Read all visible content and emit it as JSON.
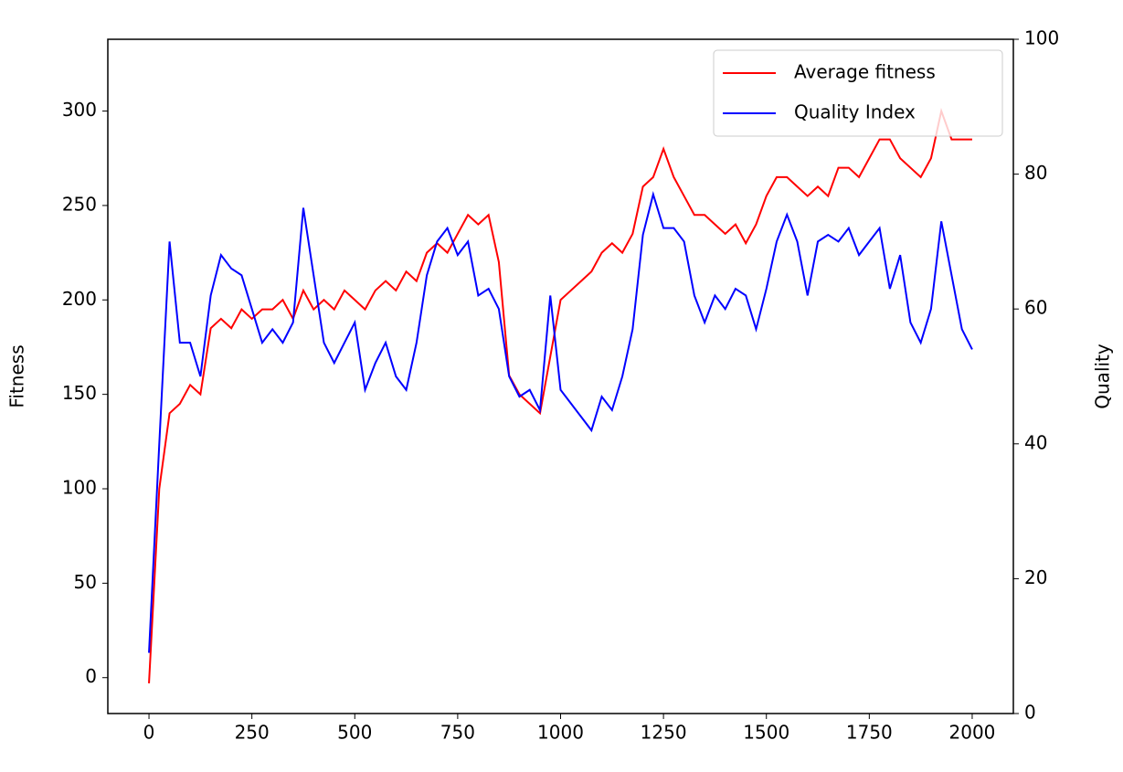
{
  "chart_data": {
    "type": "line",
    "ylabel": "Fitness",
    "y2label": "Quality",
    "x": [
      0,
      25,
      50,
      75,
      100,
      125,
      150,
      175,
      200,
      225,
      250,
      275,
      300,
      325,
      350,
      375,
      400,
      425,
      450,
      475,
      500,
      525,
      550,
      575,
      600,
      625,
      650,
      675,
      700,
      725,
      750,
      775,
      800,
      825,
      850,
      875,
      900,
      925,
      950,
      975,
      1000,
      1025,
      1050,
      1075,
      1100,
      1125,
      1150,
      1175,
      1200,
      1225,
      1250,
      1275,
      1300,
      1325,
      1350,
      1375,
      1400,
      1425,
      1450,
      1475,
      1500,
      1525,
      1550,
      1575,
      1600,
      1625,
      1650,
      1675,
      1700,
      1725,
      1750,
      1775,
      1800,
      1825,
      1850,
      1875,
      1900,
      1925,
      1950,
      1975,
      2000
    ],
    "series": [
      {
        "name": "Average fitness",
        "color": "#ff0000",
        "axis": "y",
        "values": [
          -3,
          100,
          140,
          145,
          155,
          150,
          185,
          190,
          185,
          195,
          190,
          195,
          195,
          200,
          190,
          205,
          195,
          200,
          195,
          205,
          200,
          195,
          205,
          210,
          205,
          215,
          210,
          225,
          230,
          225,
          235,
          245,
          240,
          245,
          220,
          160,
          150,
          145,
          140,
          170,
          200,
          205,
          210,
          215,
          225,
          230,
          225,
          235,
          260,
          265,
          280,
          265,
          255,
          245,
          245,
          240,
          235,
          240,
          230,
          240,
          255,
          265,
          265,
          260,
          255,
          260,
          255,
          270,
          270,
          265,
          275,
          285,
          285,
          275,
          270,
          265,
          275,
          300,
          285,
          285,
          285
        ]
      },
      {
        "name": "Quality Index",
        "color": "#0000ff",
        "axis": "y2",
        "values": [
          9,
          40,
          70,
          55,
          55,
          50,
          62,
          68,
          66,
          65,
          60,
          55,
          57,
          55,
          58,
          75,
          65,
          55,
          52,
          55,
          58,
          48,
          52,
          55,
          50,
          48,
          55,
          65,
          70,
          72,
          68,
          70,
          62,
          63,
          60,
          50,
          47,
          48,
          45,
          62,
          48,
          46,
          44,
          42,
          47,
          45,
          50,
          57,
          71,
          77,
          72,
          72,
          70,
          62,
          58,
          62,
          60,
          63,
          62,
          57,
          63,
          70,
          74,
          70,
          62,
          70,
          71,
          70,
          72,
          68,
          70,
          72,
          63,
          68,
          58,
          55,
          60,
          73,
          65,
          57,
          54
        ]
      }
    ],
    "xlim": [
      -100,
      2100
    ],
    "xticks": [
      0,
      250,
      500,
      750,
      1000,
      1250,
      1500,
      1750,
      2000
    ],
    "ylim": [
      -19,
      338
    ],
    "yticks": [
      0,
      50,
      100,
      150,
      200,
      250,
      300
    ],
    "y2lim": [
      0,
      100
    ],
    "y2ticks": [
      0,
      20,
      40,
      60,
      80,
      100
    ],
    "legend": "upper right"
  }
}
